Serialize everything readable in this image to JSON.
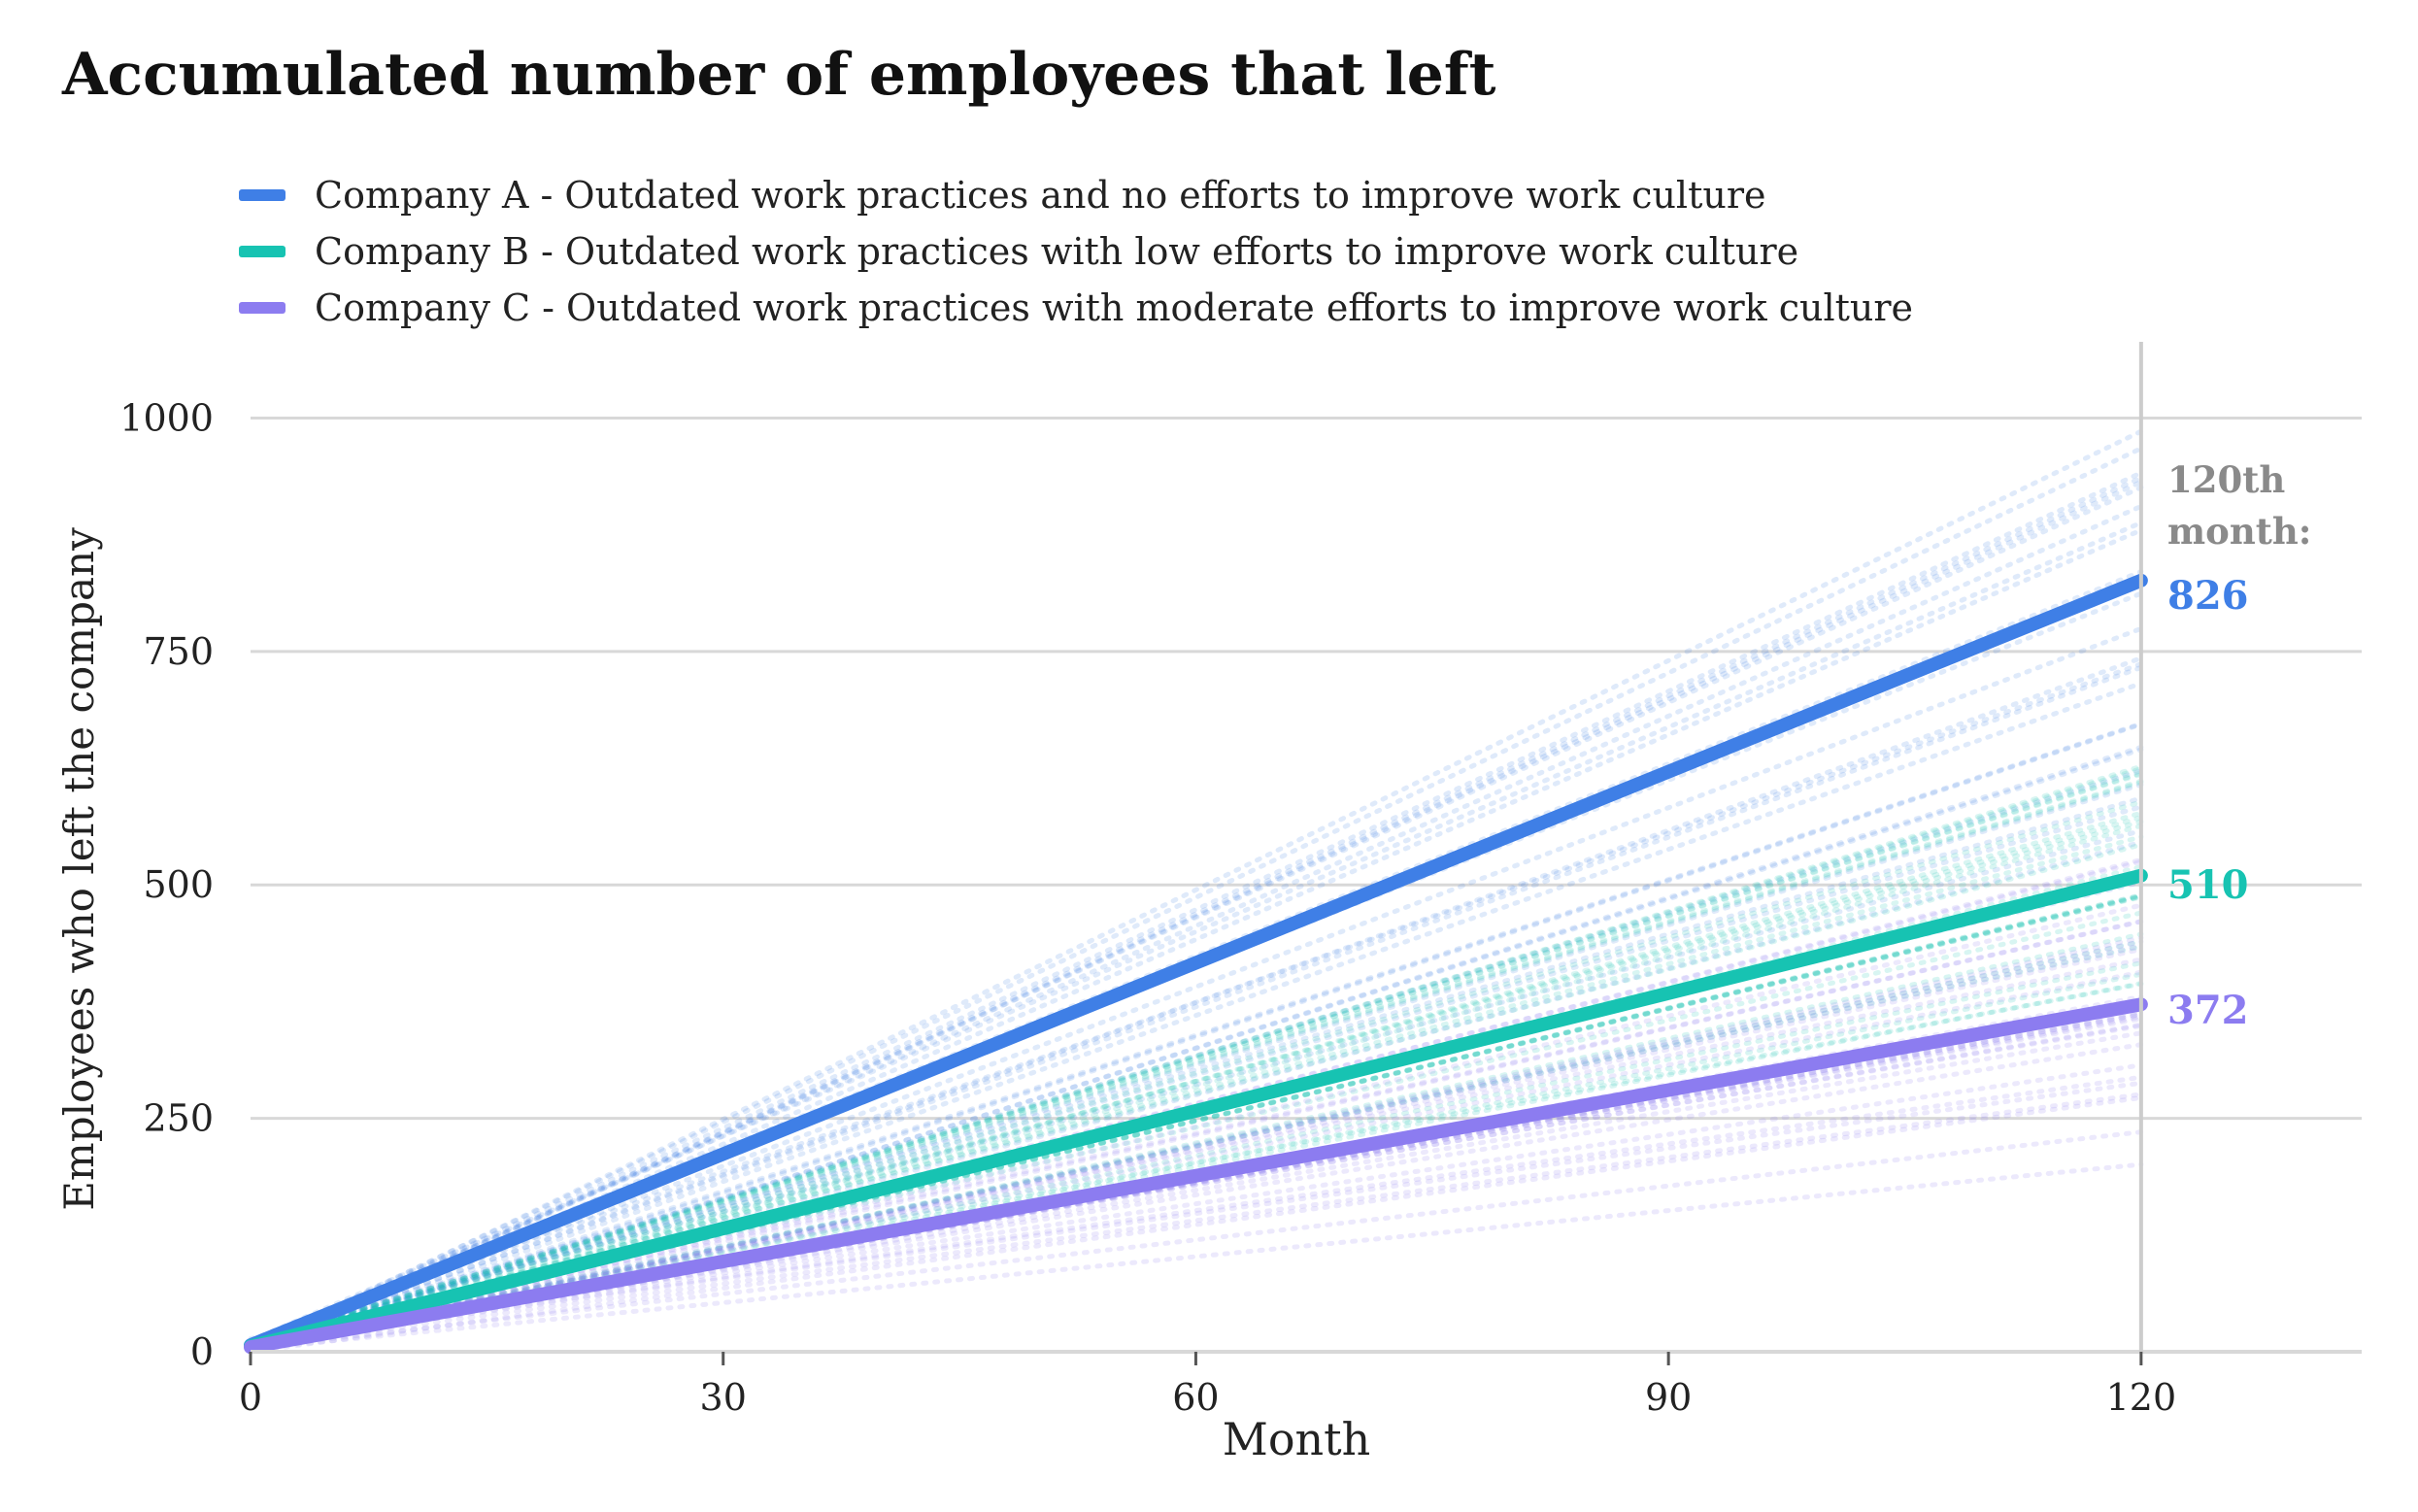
{
  "title": "Accumulated number of employees that left",
  "legend": [
    {
      "label": "Company A - Outdated work practices and no efforts to improve work culture",
      "color": "#3f7fe6"
    },
    {
      "label": "Company B - Outdated work practices with low efforts to improve work culture",
      "color": "#17c3b2"
    },
    {
      "label": "Company C - Outdated work practices with moderate efforts to improve work culture",
      "color": "#8c7cf0"
    }
  ],
  "annotation": {
    "header_line1": "120th",
    "header_line2": "month:",
    "values": [
      {
        "series": "Company A",
        "text": "826",
        "color": "#3f7fe6"
      },
      {
        "series": "Company B",
        "text": "510",
        "color": "#17c3b2"
      },
      {
        "series": "Company C",
        "text": "372",
        "color": "#8c7cf0"
      }
    ]
  },
  "chart_data": {
    "type": "line",
    "xlabel": "Month",
    "ylabel": "Employees who left the company",
    "xlim": [
      0,
      134
    ],
    "ylim": [
      0,
      1040
    ],
    "xticks": [
      0,
      30,
      60,
      90,
      120
    ],
    "yticks": [
      0,
      250,
      500,
      750,
      1000
    ],
    "grid": "horizontal",
    "vline_at": 120,
    "series": [
      {
        "name": "Company A - Outdated work practices and no efforts to improve work culture",
        "color": "#3f7fe6",
        "x": [
          0,
          120
        ],
        "y": [
          7,
          826
        ],
        "spread_low": [
          0,
          420
        ],
        "spread_high": [
          14,
          1060
        ]
      },
      {
        "name": "Company B - Outdated work practices with low efforts to improve work culture",
        "color": "#17c3b2",
        "x": [
          0,
          120
        ],
        "y": [
          6,
          510
        ],
        "spread_low": [
          0,
          350
        ],
        "spread_high": [
          12,
          700
        ]
      },
      {
        "name": "Company C - Outdated work practices with moderate efforts to improve work culture",
        "color": "#8c7cf0",
        "x": [
          0,
          120
        ],
        "y": [
          5,
          372
        ],
        "spread_low": [
          0,
          190
        ],
        "spread_high": [
          10,
          560
        ]
      }
    ]
  }
}
